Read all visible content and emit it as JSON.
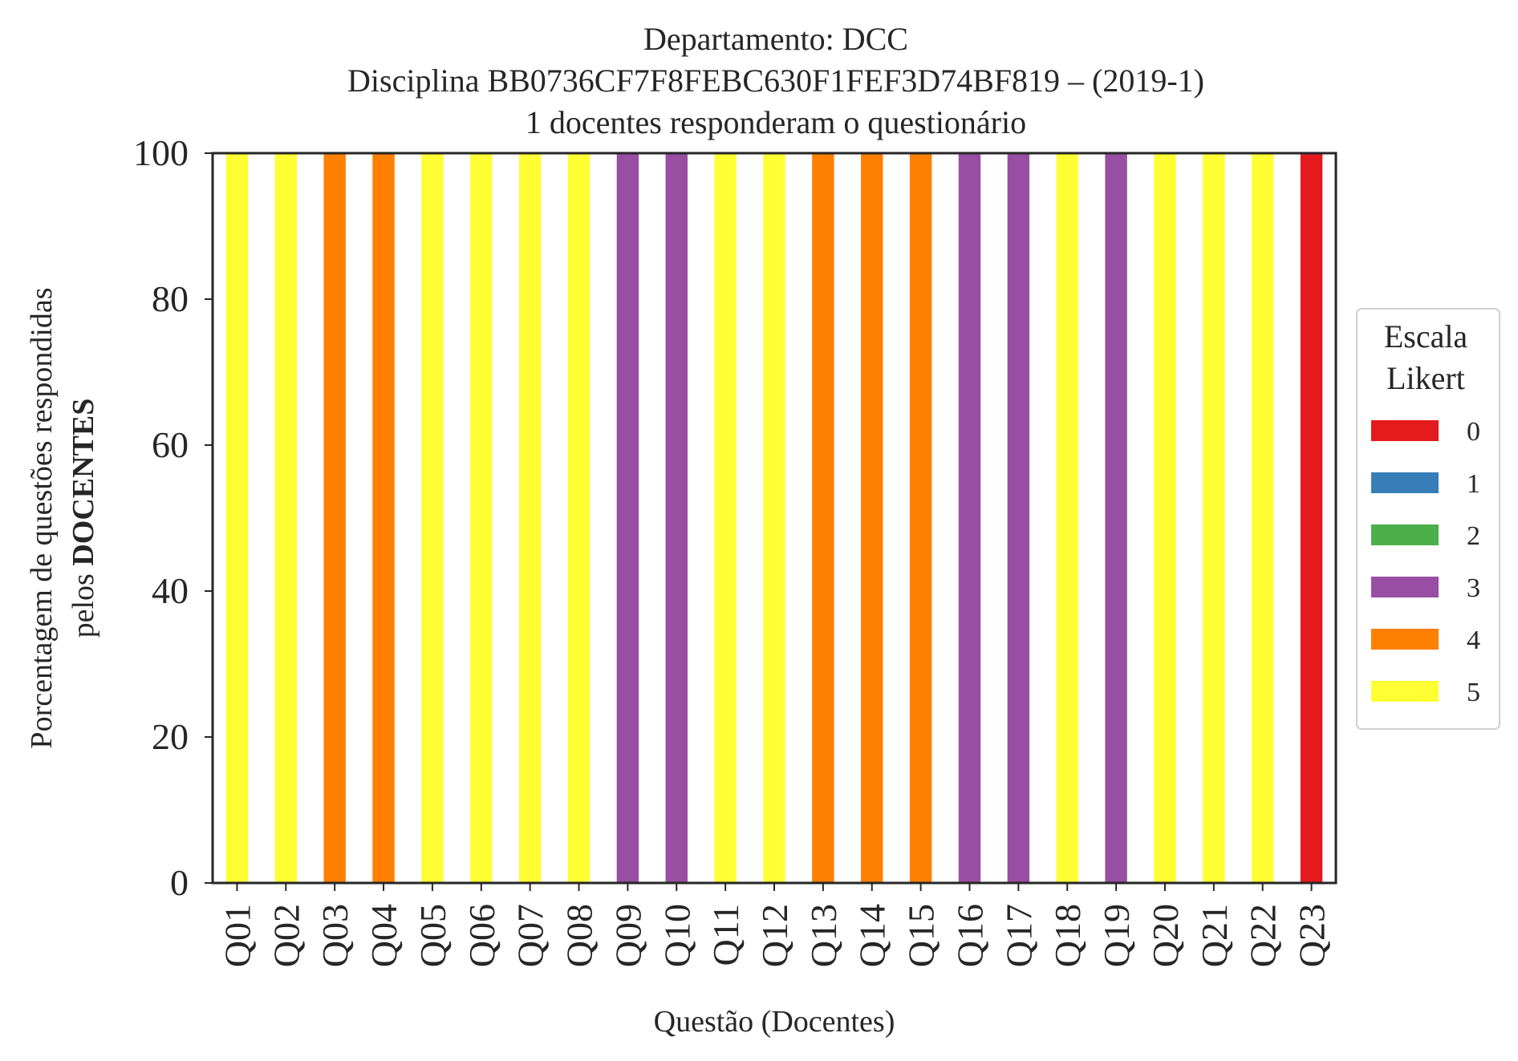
{
  "chart_data": {
    "type": "bar",
    "stacked": true,
    "title_lines": [
      "Departamento: DCC",
      "Disciplina BB0736CF7F8FEBC630F1FEF3D74BF819 – (2019-1)",
      "1 docentes responderam o questionário"
    ],
    "xlabel": "Questão (Docentes)",
    "ylabel_line1": "Porcentagem de questões respondidas",
    "ylabel_line2_prefix": "pelos ",
    "ylabel_line2_bold": "DOCENTES",
    "ylim": [
      0,
      100
    ],
    "yticks": [
      0,
      20,
      40,
      60,
      80,
      100
    ],
    "grid": false,
    "legend_placement": "right",
    "legend_title_lines": [
      "Escala",
      "Likert"
    ],
    "categories": [
      "Q01",
      "Q02",
      "Q03",
      "Q04",
      "Q05",
      "Q06",
      "Q07",
      "Q08",
      "Q09",
      "Q10",
      "Q11",
      "Q12",
      "Q13",
      "Q14",
      "Q15",
      "Q16",
      "Q17",
      "Q18",
      "Q19",
      "Q20",
      "Q21",
      "Q22",
      "Q23"
    ],
    "series": [
      {
        "name": "0",
        "color": "#e41a1c",
        "values": [
          0,
          0,
          0,
          0,
          0,
          0,
          0,
          0,
          0,
          0,
          0,
          0,
          0,
          0,
          0,
          0,
          0,
          0,
          0,
          0,
          0,
          0,
          100
        ]
      },
      {
        "name": "1",
        "color": "#377eb8",
        "values": [
          0,
          0,
          0,
          0,
          0,
          0,
          0,
          0,
          0,
          0,
          0,
          0,
          0,
          0,
          0,
          0,
          0,
          0,
          0,
          0,
          0,
          0,
          0
        ]
      },
      {
        "name": "2",
        "color": "#4daf4a",
        "values": [
          0,
          0,
          0,
          0,
          0,
          0,
          0,
          0,
          0,
          0,
          0,
          0,
          0,
          0,
          0,
          0,
          0,
          0,
          0,
          0,
          0,
          0,
          0
        ]
      },
      {
        "name": "3",
        "color": "#984ea3",
        "values": [
          0,
          0,
          0,
          0,
          0,
          0,
          0,
          0,
          100,
          100,
          0,
          0,
          0,
          0,
          0,
          100,
          100,
          0,
          100,
          0,
          0,
          0,
          0
        ]
      },
      {
        "name": "4",
        "color": "#ff7f00",
        "values": [
          0,
          0,
          100,
          100,
          0,
          0,
          0,
          0,
          0,
          0,
          0,
          0,
          100,
          100,
          100,
          0,
          0,
          0,
          0,
          0,
          0,
          0,
          0
        ]
      },
      {
        "name": "5",
        "color": "#ffff33",
        "values": [
          100,
          100,
          0,
          0,
          100,
          100,
          100,
          100,
          0,
          0,
          100,
          100,
          0,
          0,
          0,
          0,
          0,
          100,
          0,
          100,
          100,
          100,
          0
        ]
      }
    ]
  }
}
